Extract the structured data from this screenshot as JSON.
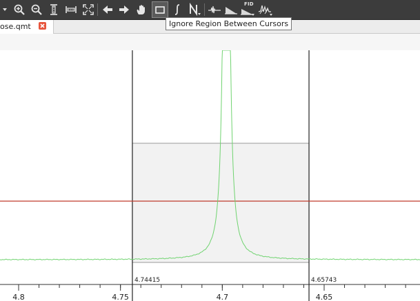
{
  "toolbar": {
    "fid_label": "FID",
    "buttons": [
      {
        "icon": "dropdown-arrow-icon"
      },
      {
        "icon": "zoom-in-icon"
      },
      {
        "icon": "zoom-out-icon"
      },
      {
        "icon": "vertical-zoom-icon"
      },
      {
        "icon": "horizontal-zoom-icon"
      },
      {
        "icon": "full-view-icon"
      },
      {
        "icon": "previous-arrow-icon"
      },
      {
        "icon": "next-arrow-icon"
      },
      {
        "icon": "pan-hand-icon"
      },
      {
        "icon": "ignore-region-icon",
        "active": true
      },
      {
        "icon": "integral-icon"
      },
      {
        "icon": "normalize-icon"
      },
      {
        "icon": "phase-icon"
      },
      {
        "icon": "baseline-icon"
      },
      {
        "icon": "fid-icon"
      },
      {
        "icon": "peak-pick-icon"
      }
    ]
  },
  "tooltip": "Ignore Region Between Cursors",
  "tab": {
    "label": "ose.qmt"
  },
  "spectrum": {
    "x_ticks": [
      "4.8",
      "4.75",
      "4.7",
      "4.65"
    ],
    "cursors": [
      {
        "label": "4.74415",
        "ppm": 4.74415
      },
      {
        "label": "4.65743",
        "ppm": 4.65743
      }
    ],
    "peak_ppm": 4.698,
    "colors": {
      "spectrum_line": "#6fd36f",
      "threshold_line": "#c0392b",
      "ignore_region_fill": "#f2f2f2",
      "ignore_region_border": "#9a9a9a",
      "cursor_line": "#222222",
      "axis": "#333333"
    }
  }
}
